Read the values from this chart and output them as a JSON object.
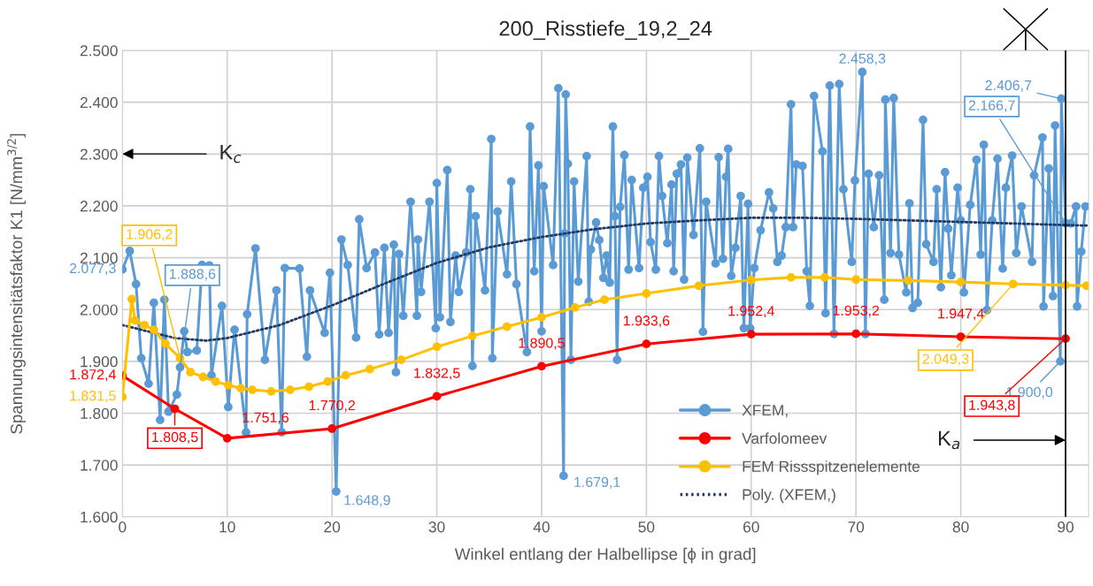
{
  "chart_data": {
    "type": "line",
    "title": "200_Risstiefe_19,2_24",
    "xlabel": "Winkel entlang der Halbellipse [ϕ in grad]",
    "ylabel": "Spannungsintensitätsfaktor K1 [N/mm$^{3/2}$]",
    "xlim": [
      0,
      92.2
    ],
    "xticks": [
      0,
      10,
      20,
      30,
      40,
      50,
      60,
      70,
      80,
      90
    ],
    "ylim": [
      1600,
      2500
    ],
    "yticks": [
      {
        "value": 1600,
        "label": "1.600"
      },
      {
        "value": 1700,
        "label": "1.700"
      },
      {
        "value": 1800,
        "label": "1.800"
      },
      {
        "value": 1900,
        "label": "1.900"
      },
      {
        "value": 2000,
        "label": "2.000"
      },
      {
        "value": 2100,
        "label": "2.100"
      },
      {
        "value": 2200,
        "label": "2.200"
      },
      {
        "value": 2300,
        "label": "2.300"
      },
      {
        "value": 2400,
        "label": "2.400"
      },
      {
        "value": 2500,
        "label": "2.500"
      }
    ],
    "grid": true,
    "legend": "bottom right",
    "ref_lines": [
      {
        "axis": "x",
        "value": 90,
        "color": "#000000"
      }
    ],
    "annotations": [
      "K$_{c}$",
      {
        "text": "K$_{a}$",
        "x": 90,
        "y": 1748
      }
    ],
    "series": [
      {
        "name": "XFEM,",
        "color": "#5b9bd5",
        "marker": "circle",
        "line_style": "solid",
        "x": [
          0,
          0.7,
          1.3,
          1.8,
          2.5,
          3,
          3.6,
          4,
          4.4,
          5.2,
          5.5,
          5.9,
          6.2,
          7.1,
          7.6,
          8.3,
          8.5,
          9.5,
          10.1,
          10.7,
          11.8,
          11.9,
          12.7,
          13.6,
          14.7,
          15.2,
          15.5,
          16.9,
          17.6,
          17.9,
          19.3,
          19.8,
          20.4,
          20.9,
          21.5,
          22.3,
          22.6,
          23.3,
          24.1,
          24.5,
          25,
          25.4,
          25.9,
          26.1,
          26.4,
          26.8,
          27.5,
          28.1,
          28.2,
          28.5,
          29.3,
          29.9,
          30,
          30.3,
          31,
          31.3,
          31.8,
          32.1,
          32.8,
          33.2,
          33.4,
          33.7,
          34.6,
          35.2,
          35.3,
          35.8,
          36.7,
          37.1,
          37.6,
          38.6,
          38.9,
          39.3,
          39.7,
          40,
          40.2,
          41.1,
          41.6,
          42.1,
          42.2,
          42.3,
          42.5,
          42.8,
          43.1,
          43.5,
          44.3,
          44.5,
          44.7,
          45.2,
          45.5,
          45.9,
          46.2,
          46.5,
          46.8,
          47,
          47.2,
          47.5,
          47.9,
          48.3,
          48.6,
          49.3,
          49.7,
          50.1,
          50.4,
          50.9,
          51.2,
          51.5,
          52,
          52.4,
          52.6,
          52.9,
          53.3,
          53.6,
          53.9,
          54.5,
          55.1,
          55.4,
          55.7,
          56.6,
          56.9,
          57.3,
          57.6,
          57.8,
          58.1,
          58.5,
          59,
          59.3,
          59.7,
          59.9,
          60.3,
          60.9,
          61.7,
          62.1,
          62.5,
          62.9,
          63.3,
          63.8,
          64,
          64.3,
          64.9,
          65.3,
          65.6,
          66,
          66.8,
          67.1,
          67.5,
          67.9,
          68.4,
          68.8,
          69.6,
          69.9,
          70.6,
          70.9,
          71.2,
          71.7,
          72.2,
          72.7,
          72.8,
          73.3,
          73.6,
          74.1,
          74.8,
          75.1,
          75.4,
          75.9,
          76.4,
          76.7,
          77.4,
          77.7,
          78.1,
          78.5,
          78.8,
          79.1,
          79.7,
          80,
          80.3,
          80.9,
          81.5,
          81.9,
          82.2,
          82.5,
          83,
          83.5,
          84,
          84.3,
          84.9,
          85.3,
          85.8,
          86.8,
          87,
          87.8,
          87.9,
          88.4,
          88.8,
          89,
          89.5,
          89.6,
          90,
          90.5,
          91,
          91.1,
          91.5,
          91.9
        ],
        "values": [
          2077.3,
          2113,
          2049,
          1906,
          1857,
          2013,
          1787,
          2019,
          1803,
          1836,
          1888.6,
          1958,
          1918,
          1921,
          2086,
          2085,
          1873,
          2007,
          1812,
          1961,
          1763,
          1991,
          2118,
          1903,
          2037,
          1763,
          2080,
          2079,
          1909,
          2037,
          1955,
          2071,
          1648.9,
          2135,
          2086,
          1946,
          2174,
          2080,
          2110,
          1952,
          2119,
          1955,
          2125,
          1879,
          2107,
          1988,
          2208,
          1988,
          2135,
          2034,
          2208,
          1964,
          2244,
          1985,
          2269,
          1976,
          2104,
          2034,
          2110,
          2232,
          1891,
          2180,
          2037,
          2329,
          1906,
          2189,
          2068,
          2247,
          2049,
          1918,
          2353,
          2074,
          2278,
          1958,
          2238,
          2086,
          2427,
          1679.1,
          2147,
          2415,
          2281,
          1903,
          2247,
          2054,
          2296,
          2015,
          2116,
          2168,
          2134,
          2061,
          2104,
          2052,
          2353,
          2180,
          1903,
          2198,
          2298,
          2077,
          2250,
          2080,
          2235,
          2256,
          2130,
          2077,
          2296,
          2219,
          2128,
          2241,
          2074,
          2262,
          2280,
          2058,
          2293,
          2144,
          2311,
          1957,
          2208,
          2089,
          2294,
          2098,
          2256,
          2310,
          2065,
          2119,
          2219,
          1964,
          2204,
          1964,
          2080,
          2153,
          2226,
          2195,
          2092,
          2104,
          2159,
          2396,
          2159,
          2280,
          2277,
          2074,
          2007,
          2412,
          2305,
          1993,
          2432,
          1953,
          2435,
          2232,
          2092,
          2249,
          2458.3,
          1953,
          2262,
          2159,
          2259,
          2019,
          2405,
          2109,
          2408,
          2106,
          2033,
          2205,
          2003,
          2013,
          2366,
          2126,
          2092,
          2232,
          2043,
          2265,
          2156,
          2066,
          2235,
          2172,
          2033,
          2202,
          2289,
          2106,
          2318,
          1999,
          2172,
          2291,
          2079,
          2235,
          2297,
          2109,
          2199,
          2092,
          2259,
          2332,
          2006,
          2272,
          2026,
          2355,
          1900.0,
          2406.7,
          2166.7,
          2166,
          2199,
          2006,
          2112,
          2199
        ],
        "value_labels": [
          "2.077,3",
          null,
          null,
          null,
          null,
          null,
          null,
          null,
          null,
          null,
          "1.888,6",
          null,
          null,
          null,
          null,
          null,
          null,
          null,
          null,
          null,
          null,
          null,
          null,
          null,
          null,
          null,
          null,
          null,
          null,
          null,
          null,
          null,
          "1.648,9",
          null,
          null,
          null,
          null,
          null,
          null,
          null,
          null,
          null,
          null,
          null,
          null,
          null,
          null,
          null,
          null,
          null,
          null,
          null,
          null,
          null,
          null,
          null,
          null,
          null,
          null,
          null,
          null,
          null,
          null,
          null,
          null,
          null,
          null,
          null,
          null,
          null,
          null,
          null,
          null,
          null,
          null,
          null,
          null,
          "1.679,1",
          null,
          null,
          null,
          null,
          null,
          null,
          null,
          null,
          null,
          null,
          null,
          null,
          null,
          null,
          null,
          null,
          null,
          null,
          null,
          null,
          null,
          null,
          null,
          null,
          null,
          null,
          null,
          null,
          null,
          null,
          null,
          null,
          null,
          null,
          null,
          null,
          null,
          null,
          null,
          null,
          null,
          null,
          null,
          null,
          null,
          null,
          null,
          null,
          null,
          null,
          null,
          null,
          null,
          null,
          null,
          null,
          null,
          null,
          null,
          null,
          null,
          null,
          null,
          null,
          null,
          null,
          null,
          null,
          null,
          null,
          null,
          null,
          "2.458,3",
          null,
          null,
          null,
          null,
          null,
          null,
          null,
          null,
          null,
          null,
          null,
          null,
          null,
          null,
          null,
          null,
          null,
          null,
          null,
          null,
          null,
          null,
          null,
          null,
          null,
          null,
          null,
          null,
          null,
          null,
          null,
          null,
          null,
          null,
          null,
          null,
          null,
          null,
          null,
          null,
          null,
          null,
          null,
          "1.900,0",
          "2.406,7",
          "2.166,7",
          null,
          null,
          null,
          null,
          null
        ]
      },
      {
        "name": "Varfolomeev",
        "color": "#ff0000",
        "marker": "circle",
        "line_style": "solid",
        "x": [
          0,
          5,
          10,
          20,
          30,
          40,
          50,
          60,
          70,
          80,
          90
        ],
        "values": [
          1872.4,
          1808.5,
          1751.6,
          1770.2,
          1832.5,
          1890.5,
          1933.6,
          1952.4,
          1953.2,
          1947.4,
          1943.8
        ],
        "value_labels": [
          "1.872,4",
          "1.808,5",
          "1.751,6",
          "1.770,2",
          "1.832,5",
          "1.890,5",
          "1.933,6",
          "1.952,4",
          "1.953,2",
          "1.947,4",
          "1.943,8"
        ]
      },
      {
        "name": "FEM Rissspitzenelemente",
        "color": "#ffc000",
        "marker": "circle",
        "line_style": "solid",
        "x": [
          0,
          0.9,
          1.2,
          2.1,
          3,
          4.1,
          5.5,
          6.5,
          7.7,
          8.9,
          10.1,
          11.3,
          12.4,
          14.2,
          16,
          17.8,
          19.6,
          21.3,
          23.6,
          26.6,
          30,
          33.4,
          36.7,
          40,
          43.2,
          46,
          50,
          55,
          60,
          63.8,
          67,
          70,
          75,
          80,
          85,
          90,
          92
        ],
        "values": [
          1831.5,
          2020,
          1979,
          1970,
          1961,
          1934,
          1906.2,
          1879,
          1870,
          1861,
          1854,
          1848,
          1845,
          1842,
          1845,
          1851,
          1861,
          1873,
          1885,
          1903,
          1928,
          1949,
          1967,
          1985,
          2004,
          2019,
          2031,
          2046,
          2057,
          2062,
          2062,
          2058,
          2056,
          2053,
          2049.3,
          2047,
          2046
        ],
        "value_labels": [
          "1.831,5",
          null,
          null,
          null,
          null,
          null,
          "1.906,2",
          null,
          null,
          null,
          null,
          null,
          null,
          null,
          null,
          null,
          null,
          null,
          null,
          null,
          null,
          null,
          null,
          null,
          null,
          null,
          null,
          null,
          null,
          null,
          null,
          null,
          null,
          null,
          "2.049,3",
          null,
          null
        ]
      },
      {
        "name": "Poly. (XFEM,)",
        "color": "#203864",
        "marker": "none",
        "line_style": "dotted",
        "x": [
          0,
          5,
          8,
          10,
          15,
          20,
          25,
          30,
          35,
          40,
          45,
          50,
          55,
          60,
          65,
          70,
          75,
          80,
          85,
          90,
          92
        ],
        "values": [
          1970,
          1945,
          1940,
          1945,
          1970,
          2008,
          2050,
          2090,
          2120,
          2140,
          2155,
          2166,
          2172,
          2177,
          2177,
          2175,
          2172,
          2169,
          2166,
          2163,
          2162
        ]
      }
    ]
  }
}
